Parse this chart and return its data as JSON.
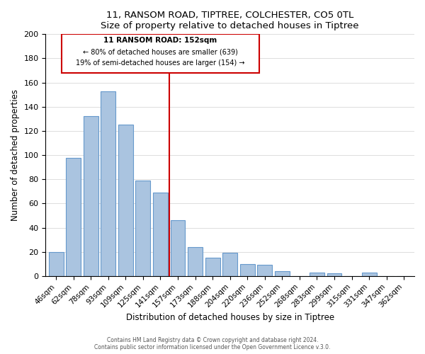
{
  "title": "11, RANSOM ROAD, TIPTREE, COLCHESTER, CO5 0TL",
  "subtitle": "Size of property relative to detached houses in Tiptree",
  "xlabel": "Distribution of detached houses by size in Tiptree",
  "ylabel": "Number of detached properties",
  "bar_labels": [
    "46sqm",
    "62sqm",
    "78sqm",
    "93sqm",
    "109sqm",
    "125sqm",
    "141sqm",
    "157sqm",
    "173sqm",
    "188sqm",
    "204sqm",
    "220sqm",
    "236sqm",
    "252sqm",
    "268sqm",
    "283sqm",
    "299sqm",
    "315sqm",
    "331sqm",
    "347sqm",
    "362sqm"
  ],
  "bar_values": [
    20,
    98,
    132,
    153,
    125,
    79,
    69,
    46,
    24,
    15,
    19,
    10,
    9,
    4,
    0,
    3,
    2,
    0,
    3,
    0,
    0
  ],
  "bar_color": "#aac4e0",
  "bar_edge_color": "#6699cc",
  "vline_x": 6.5,
  "vline_color": "#cc0000",
  "annotation_title": "11 RANSOM ROAD: 152sqm",
  "annotation_line1": "← 80% of detached houses are smaller (639)",
  "annotation_line2": "19% of semi-detached houses are larger (154) →",
  "annotation_box_edge": "#cc0000",
  "ylim": [
    0,
    200
  ],
  "yticks": [
    0,
    20,
    40,
    60,
    80,
    100,
    120,
    140,
    160,
    180,
    200
  ],
  "footer1": "Contains HM Land Registry data © Crown copyright and database right 2024.",
  "footer2": "Contains public sector information licensed under the Open Government Licence v.3.0."
}
